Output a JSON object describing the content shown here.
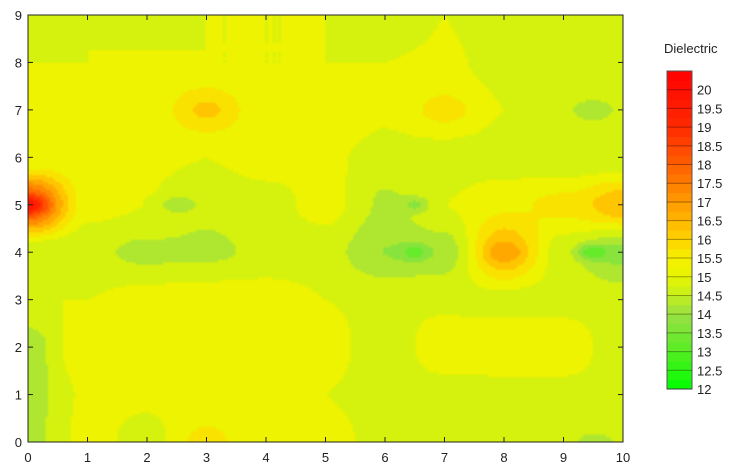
{
  "chart_data": {
    "type": "heatmap",
    "title": "",
    "xlabel": "",
    "ylabel": "",
    "xlim": [
      0,
      10
    ],
    "ylim": [
      0,
      9
    ],
    "x_ticks": [
      "0",
      "1",
      "2",
      "3",
      "4",
      "5",
      "6",
      "7",
      "8",
      "9",
      "10"
    ],
    "y_ticks": [
      "0",
      "1",
      "2",
      "3",
      "4",
      "5",
      "6",
      "7",
      "8",
      "9"
    ],
    "grid": false,
    "legend_placement": "right",
    "colorbar": {
      "title": "Dielectric",
      "min": 12,
      "max": 20.5,
      "labels": [
        "20",
        "19.5",
        "19",
        "18.5",
        "18",
        "17.5",
        "17",
        "16.5",
        "16",
        "15.5",
        "15",
        "14.5",
        "14",
        "13.5",
        "13",
        "12.5",
        "12"
      ],
      "colors": {
        "12": "#00ff00",
        "13": "#55ee22",
        "14": "#99e044",
        "14.5": "#c4ee1c",
        "15": "#e6f500",
        "15.5": "#f4f000",
        "16": "#ffd300",
        "17": "#ff9a00",
        "18": "#ff6000",
        "19": "#ff2a00",
        "20.5": "#ff0000"
      }
    },
    "grid_values": {
      "x": [
        0,
        1,
        2,
        3,
        4,
        5,
        6,
        7,
        8,
        9,
        10
      ],
      "y": [
        0,
        1,
        2,
        3,
        4,
        5,
        6,
        7,
        8,
        9
      ],
      "z": [
        [
          14.3,
          15.2,
          14.8,
          15.6,
          15.0,
          15.2,
          14.8,
          14.8,
          14.9,
          14.8,
          14.6
        ],
        [
          14.3,
          15.1,
          15.1,
          15.2,
          15.1,
          15.0,
          14.8,
          14.8,
          14.8,
          14.8,
          14.8
        ],
        [
          14.2,
          15.5,
          15.3,
          15.2,
          15.0,
          15.2,
          14.7,
          15.3,
          15.4,
          15.4,
          14.6
        ],
        [
          15.0,
          15.0,
          15.2,
          15.3,
          15.3,
          15.0,
          14.9,
          14.9,
          14.8,
          14.8,
          14.8
        ],
        [
          14.5,
          14.6,
          14.4,
          14.4,
          14.6,
          14.7,
          14.0,
          14.2,
          16.6,
          14.7,
          13.8
        ],
        [
          18.5,
          15.2,
          15.0,
          14.6,
          14.8,
          15.2,
          14.4,
          15.0,
          15.4,
          15.6,
          16.4
        ],
        [
          15.0,
          15.1,
          15.1,
          15.0,
          15.2,
          15.1,
          14.8,
          14.7,
          14.7,
          14.6,
          14.6
        ],
        [
          15.0,
          15.5,
          15.2,
          15.9,
          15.2,
          15.5,
          15.1,
          15.6,
          15.0,
          14.6,
          14.6
        ],
        [
          15.0,
          15.0,
          15.1,
          15.0,
          15.0,
          15.0,
          15.0,
          15.1,
          14.8,
          14.8,
          14.8
        ],
        [
          14.8,
          15.0,
          14.6,
          15.0,
          15.0,
          15.0,
          14.6,
          15.0,
          14.6,
          14.6,
          14.6
        ]
      ]
    },
    "hotspots": [
      {
        "x": 0.0,
        "y": 5.0,
        "value": 20.0
      },
      {
        "x": 8.0,
        "y": 4.0,
        "value": 17.0
      },
      {
        "x": 10.0,
        "y": 5.0,
        "value": 16.5
      },
      {
        "x": 3.0,
        "y": 7.0,
        "value": 16.3
      },
      {
        "x": 3.0,
        "y": 0.0,
        "value": 16.0
      },
      {
        "x": 7.0,
        "y": 7.0,
        "value": 16.0
      },
      {
        "x": 9.0,
        "y": 5.0,
        "value": 16.0
      },
      {
        "x": 6.5,
        "y": 4.0,
        "value": 13.2
      },
      {
        "x": 9.5,
        "y": 4.0,
        "value": 13.0
      },
      {
        "x": 6.5,
        "y": 5.0,
        "value": 13.8
      },
      {
        "x": 2.0,
        "y": 4.0,
        "value": 14.0
      },
      {
        "x": 2.5,
        "y": 5.0,
        "value": 14.0
      },
      {
        "x": 9.5,
        "y": 7.0,
        "value": 14.0
      },
      {
        "x": 9.5,
        "y": 0.0,
        "value": 14.0
      }
    ]
  }
}
